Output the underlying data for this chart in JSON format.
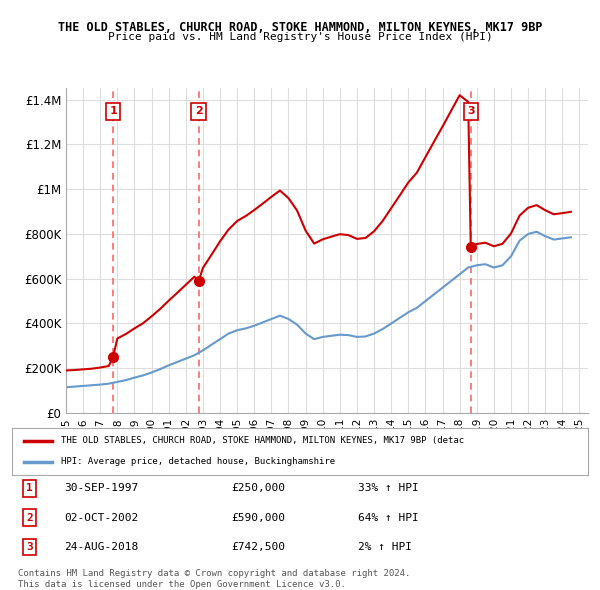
{
  "title_line1": "THE OLD STABLES, CHURCH ROAD, STOKE HAMMOND, MILTON KEYNES, MK17 9BP",
  "title_line2": "Price paid vs. HM Land Registry's House Price Index (HPI)",
  "xlim": [
    1995.0,
    2025.5
  ],
  "ylim": [
    0,
    1450000
  ],
  "yticks": [
    0,
    200000,
    400000,
    600000,
    800000,
    1000000,
    1200000,
    1400000
  ],
  "ytick_labels": [
    "£0",
    "£200K",
    "£400K",
    "£600K",
    "£800K",
    "£1M",
    "£1.2M",
    "£1.4M"
  ],
  "hpi_color": "#6699cc",
  "price_color": "#cc0000",
  "vline_color": "#ff6666",
  "dot_color": "#cc0000",
  "background_color": "#ffffff",
  "grid_color": "#dddddd",
  "legend1_text": "THE OLD STABLES, CHURCH ROAD, STOKE HAMMOND, MILTON KEYNES, MK17 9BP (detac",
  "legend2_text": "HPI: Average price, detached house, Buckinghamshire",
  "table_entries": [
    {
      "num": "1",
      "date": "30-SEP-1997",
      "price": "£250,000",
      "change": "33% ↑ HPI"
    },
    {
      "num": "2",
      "date": "02-OCT-2002",
      "price": "£590,000",
      "change": "64% ↑ HPI"
    },
    {
      "num": "3",
      "date": "24-AUG-2018",
      "price": "£742,500",
      "change": "2% ↑ HPI"
    }
  ],
  "footer": "Contains HM Land Registry data © Crown copyright and database right 2024.\nThis data is licensed under the Open Government Licence v3.0.",
  "sale_years": [
    1997.75,
    2002.75,
    2018.65
  ],
  "sale_prices": [
    250000,
    590000,
    742500
  ],
  "hpi_years": [
    1995,
    1995.5,
    1996,
    1996.5,
    1997,
    1997.5,
    1998,
    1998.5,
    1999,
    1999.5,
    2000,
    2000.5,
    2001,
    2001.5,
    2002,
    2002.5,
    2003,
    2003.5,
    2004,
    2004.5,
    2005,
    2005.5,
    2006,
    2006.5,
    2007,
    2007.5,
    2008,
    2008.5,
    2009,
    2009.5,
    2010,
    2010.5,
    2011,
    2011.5,
    2012,
    2012.5,
    2013,
    2013.5,
    2014,
    2014.5,
    2015,
    2015.5,
    2016,
    2016.5,
    2017,
    2017.5,
    2018,
    2018.5,
    2019,
    2019.5,
    2020,
    2020.5,
    2021,
    2021.5,
    2022,
    2022.5,
    2023,
    2023.5,
    2024,
    2024.5
  ],
  "hpi_values": [
    115000,
    118000,
    121000,
    124000,
    127000,
    131000,
    139000,
    147000,
    158000,
    168000,
    181000,
    196000,
    213000,
    228000,
    243000,
    258000,
    280000,
    305000,
    330000,
    355000,
    370000,
    378000,
    390000,
    405000,
    420000,
    435000,
    420000,
    395000,
    355000,
    330000,
    340000,
    345000,
    350000,
    348000,
    340000,
    342000,
    355000,
    375000,
    400000,
    425000,
    450000,
    470000,
    500000,
    530000,
    560000,
    590000,
    620000,
    650000,
    660000,
    665000,
    650000,
    660000,
    700000,
    770000,
    800000,
    810000,
    790000,
    775000,
    780000,
    785000
  ],
  "price_years": [
    1995,
    1995.5,
    1996,
    1996.5,
    1997,
    1997.5,
    1997.75,
    1998,
    1998.5,
    1999,
    1999.5,
    2000,
    2000.5,
    2001,
    2001.5,
    2002,
    2002.5,
    2002.75,
    2003,
    2003.5,
    2004,
    2004.5,
    2005,
    2005.5,
    2006,
    2006.5,
    2007,
    2007.5,
    2008,
    2008.5,
    2009,
    2009.5,
    2010,
    2010.5,
    2011,
    2011.5,
    2012,
    2012.5,
    2013,
    2013.5,
    2014,
    2014.5,
    2015,
    2015.5,
    2016,
    2016.5,
    2017,
    2017.5,
    2018,
    2018.5,
    2018.65,
    2019,
    2019.5,
    2020,
    2020.5,
    2021,
    2021.5,
    2022,
    2022.5,
    2023,
    2023.5,
    2024,
    2024.5
  ],
  "price_values": [
    190000,
    192000,
    195000,
    198000,
    203000,
    210000,
    250000,
    333000,
    353000,
    378000,
    401000,
    432000,
    465000,
    502000,
    537000,
    573000,
    609000,
    590000,
    648000,
    707000,
    767000,
    820000,
    858000,
    880000,
    907000,
    936000,
    966000,
    994000,
    960000,
    905000,
    815000,
    757000,
    776000,
    788000,
    799000,
    795000,
    778000,
    782000,
    812000,
    858000,
    915000,
    972000,
    1030000,
    1074000,
    1143000,
    1212000,
    1280000,
    1350000,
    1420000,
    1390000,
    742500,
    755000,
    761000,
    745000,
    756000,
    802000,
    882000,
    917000,
    929000,
    906000,
    888000,
    893000,
    899000
  ]
}
